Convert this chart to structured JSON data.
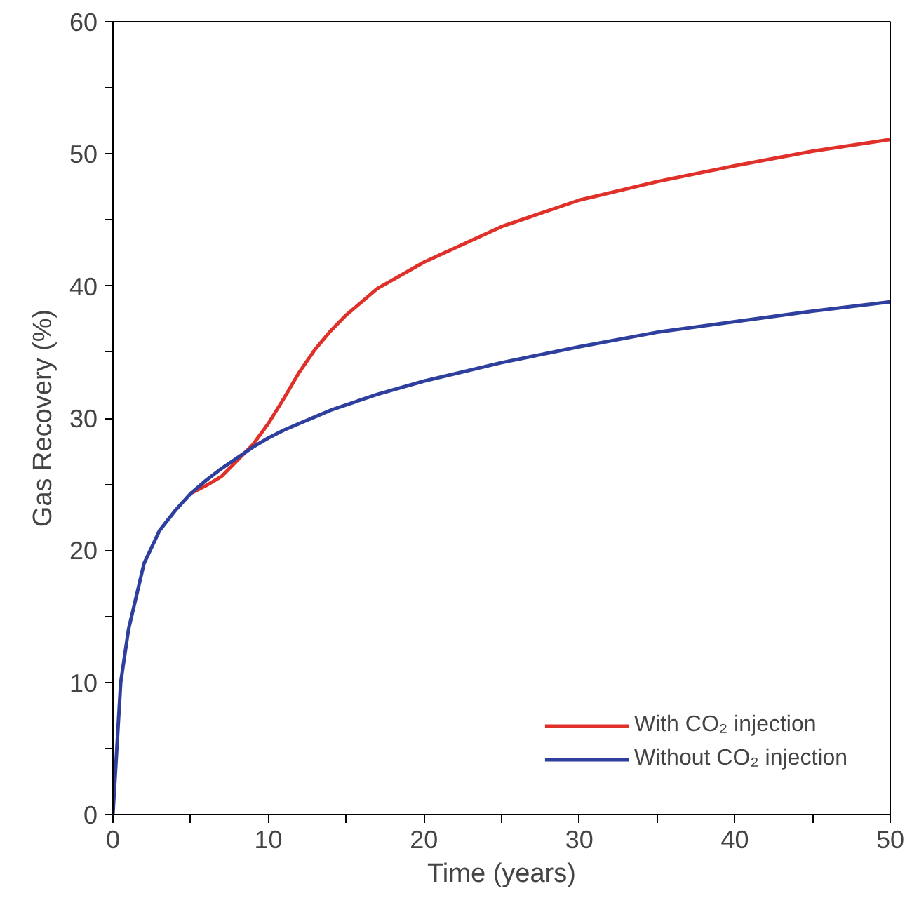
{
  "chart_data": {
    "type": "line",
    "xlabel": "Time (years)",
    "ylabel": "Gas Recovery (%)",
    "xlim": [
      0,
      50
    ],
    "ylim": [
      0,
      60
    ],
    "xticks": [
      0,
      {
        "value": 5,
        "label": null
      },
      10,
      {
        "value": 15,
        "label": null
      },
      20,
      {
        "value": 25,
        "label": null
      },
      30,
      {
        "value": 35,
        "label": null
      },
      40,
      {
        "value": 45,
        "label": null
      },
      50
    ],
    "yticks": [
      0,
      {
        "value": 5,
        "label": null
      },
      10,
      {
        "value": 15,
        "label": null
      },
      20,
      {
        "value": 25,
        "label": null
      },
      30,
      {
        "value": 35,
        "label": null
      },
      40,
      {
        "value": 45,
        "label": null
      },
      50,
      {
        "value": 55,
        "label": null
      },
      60
    ],
    "grid": false,
    "legend": "bottom right",
    "line_style": "solid",
    "marker": "none",
    "x": [
      0,
      0.5,
      1,
      2,
      3,
      4,
      5,
      6,
      7,
      8,
      9,
      10,
      11,
      12,
      13,
      14,
      15,
      17,
      20,
      25,
      30,
      35,
      40,
      45,
      50
    ],
    "series": [
      {
        "name": "With CO₂ injection",
        "color": "#e0302a",
        "values": [
          null,
          null,
          null,
          null,
          null,
          null,
          24.3,
          24.9,
          25.6,
          26.8,
          28,
          29.6,
          31.5,
          33.5,
          35.2,
          36.6,
          37.8,
          39.8,
          41.8,
          44.5,
          46.5,
          47.9,
          49.1,
          50.2,
          51.1
        ]
      },
      {
        "name": "Without CO₂ injection",
        "color": "#2e3f9e",
        "values": [
          0,
          10,
          14,
          19,
          21.5,
          23,
          24.3,
          25.3,
          26.2,
          27,
          27.8,
          28.5,
          29.1,
          29.6,
          30.1,
          30.6,
          31,
          31.8,
          32.8,
          34.2,
          35.4,
          36.5,
          37.3,
          38.1,
          38.8
        ]
      }
    ]
  }
}
